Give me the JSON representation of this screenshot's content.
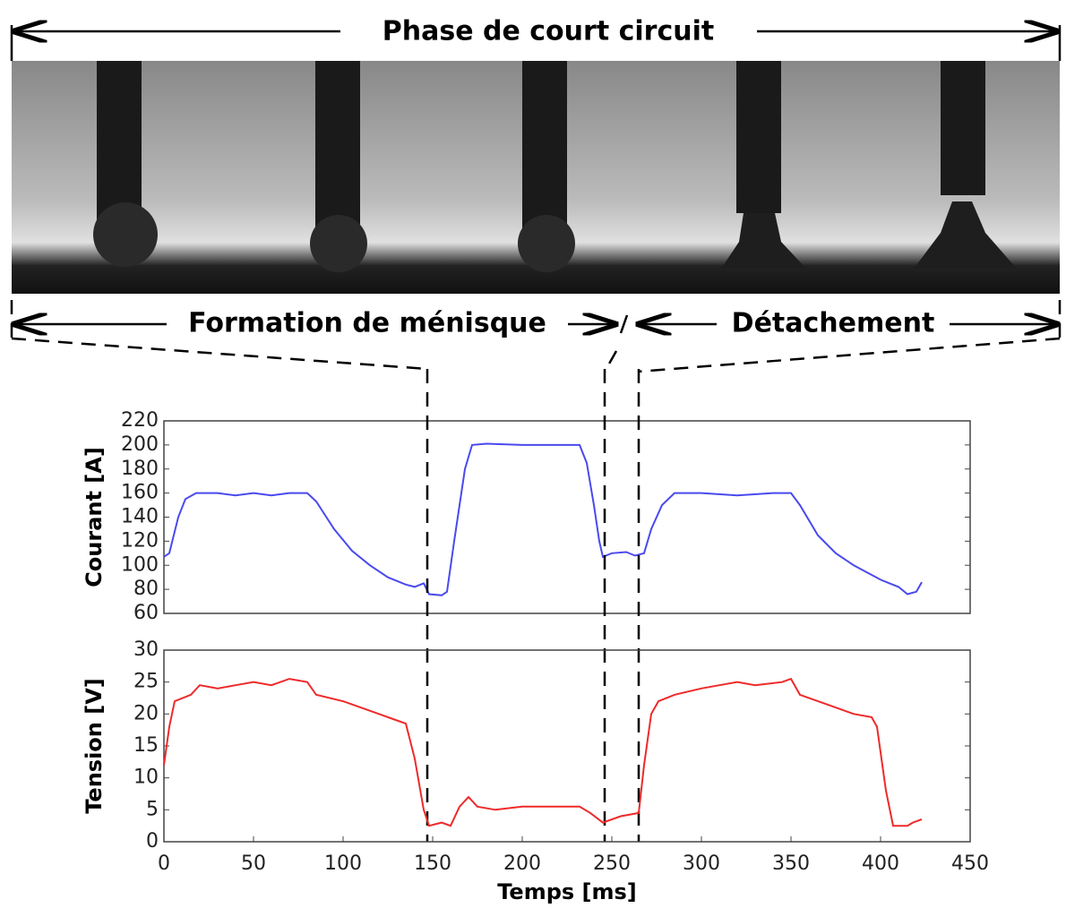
{
  "annotations": {
    "top": "Phase de court circuit",
    "left": "Formation de ménisque",
    "right": "Détachement"
  },
  "chart_data": [
    {
      "type": "line",
      "ylabel": "Courant [A]",
      "color": "#4a4aee",
      "x": [
        0,
        3,
        8,
        12,
        18,
        30,
        40,
        50,
        60,
        70,
        80,
        85,
        95,
        105,
        115,
        125,
        135,
        140,
        145,
        148,
        155,
        158,
        162,
        168,
        172,
        180,
        200,
        220,
        232,
        236,
        240,
        243,
        245,
        250,
        258,
        263,
        268,
        272,
        278,
        285,
        300,
        320,
        340,
        350,
        355,
        365,
        375,
        385,
        395,
        400,
        405,
        410,
        415,
        420,
        423
      ],
      "values": [
        107,
        110,
        140,
        155,
        160,
        160,
        158,
        160,
        158,
        160,
        160,
        153,
        130,
        112,
        100,
        90,
        84,
        82,
        85,
        76,
        75,
        78,
        120,
        180,
        200,
        201,
        200,
        200,
        200,
        185,
        150,
        120,
        107,
        110,
        111,
        108,
        110,
        130,
        150,
        160,
        160,
        158,
        160,
        160,
        150,
        125,
        110,
        100,
        92,
        88,
        85,
        82,
        76,
        78,
        86
      ],
      "xlim": [
        0,
        450
      ],
      "ylim": [
        60,
        220
      ],
      "yticks": [
        60,
        80,
        100,
        120,
        140,
        160,
        180,
        200,
        220
      ],
      "vlines": [
        147,
        246,
        265
      ]
    },
    {
      "type": "line",
      "ylabel": "Tension [V]",
      "xlabel": "Temps [ms]",
      "color": "#ee2a2a",
      "x": [
        0,
        3,
        6,
        15,
        20,
        30,
        40,
        50,
        60,
        70,
        80,
        85,
        100,
        110,
        120,
        130,
        135,
        140,
        145,
        148,
        155,
        160,
        165,
        170,
        175,
        185,
        200,
        220,
        232,
        238,
        245,
        255,
        265,
        268,
        272,
        276,
        285,
        300,
        310,
        320,
        330,
        345,
        350,
        355,
        370,
        385,
        395,
        398,
        403,
        407,
        415,
        418,
        423
      ],
      "values": [
        12,
        18,
        22,
        23,
        24.5,
        24,
        24.5,
        25,
        24.5,
        25.5,
        25,
        23,
        22,
        21,
        20,
        19,
        18.5,
        13,
        5,
        2.5,
        3,
        2.5,
        5.5,
        7,
        5.5,
        5,
        5.5,
        5.5,
        5.5,
        4.5,
        3,
        4,
        4.5,
        12,
        20,
        22,
        23,
        24,
        24.5,
        25,
        24.5,
        25,
        25.5,
        23,
        21.5,
        20,
        19.5,
        18,
        8,
        2.5,
        2.5,
        3,
        3.5
      ],
      "xlim": [
        0,
        450
      ],
      "ylim": [
        0,
        30
      ],
      "xticks": [
        0,
        50,
        100,
        150,
        200,
        250,
        300,
        350,
        400,
        450
      ],
      "yticks": [
        0,
        5,
        10,
        15,
        20,
        25,
        30
      ]
    }
  ]
}
